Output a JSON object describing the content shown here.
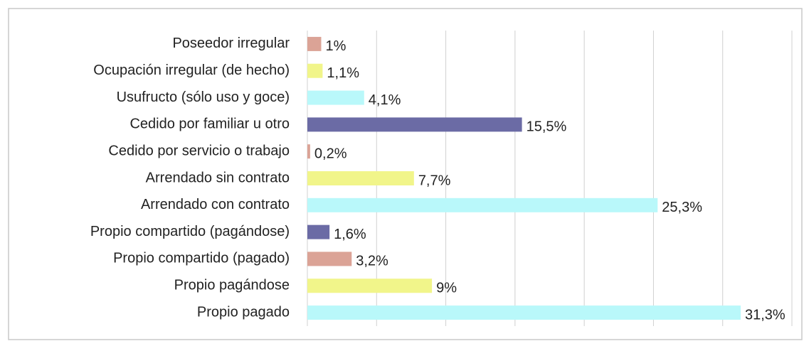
{
  "chart_data": {
    "type": "barh",
    "categories": [
      "Poseedor irregular",
      "Ocupación irregular (de hecho)",
      "Usufructo (sólo uso y goce)",
      "Cedido por familiar u otro",
      "Cedido por servicio o trabajo",
      "Arrendado sin contrato",
      "Arrendado con contrato",
      "Propio compartido (pagándose)",
      "Propio compartido (pagado) ",
      "Propio pagándose",
      "Propio pagado"
    ],
    "values": [
      1,
      1.1,
      4.1,
      15.5,
      0.2,
      7.7,
      25.3,
      1.6,
      3.2,
      9,
      31.3
    ],
    "value_labels": [
      "1%",
      "1,1%",
      "4,1%",
      "15,5%",
      "0,2%",
      "7,7%",
      "25,3%",
      "1,6%",
      "3,2%",
      "9%",
      "31,3%"
    ],
    "colors": [
      "#dba396",
      "#f1f58a",
      "#b9f8fa",
      "#6b6ba5",
      "#dba396",
      "#f1f58a",
      "#b9f8fa",
      "#6b6ba5",
      "#dba396",
      "#f1f58a",
      "#b9f8fa"
    ],
    "xlim": [
      0,
      35
    ],
    "xticks": [
      0,
      5,
      10,
      15,
      20,
      25,
      30,
      35
    ],
    "grid": true
  }
}
